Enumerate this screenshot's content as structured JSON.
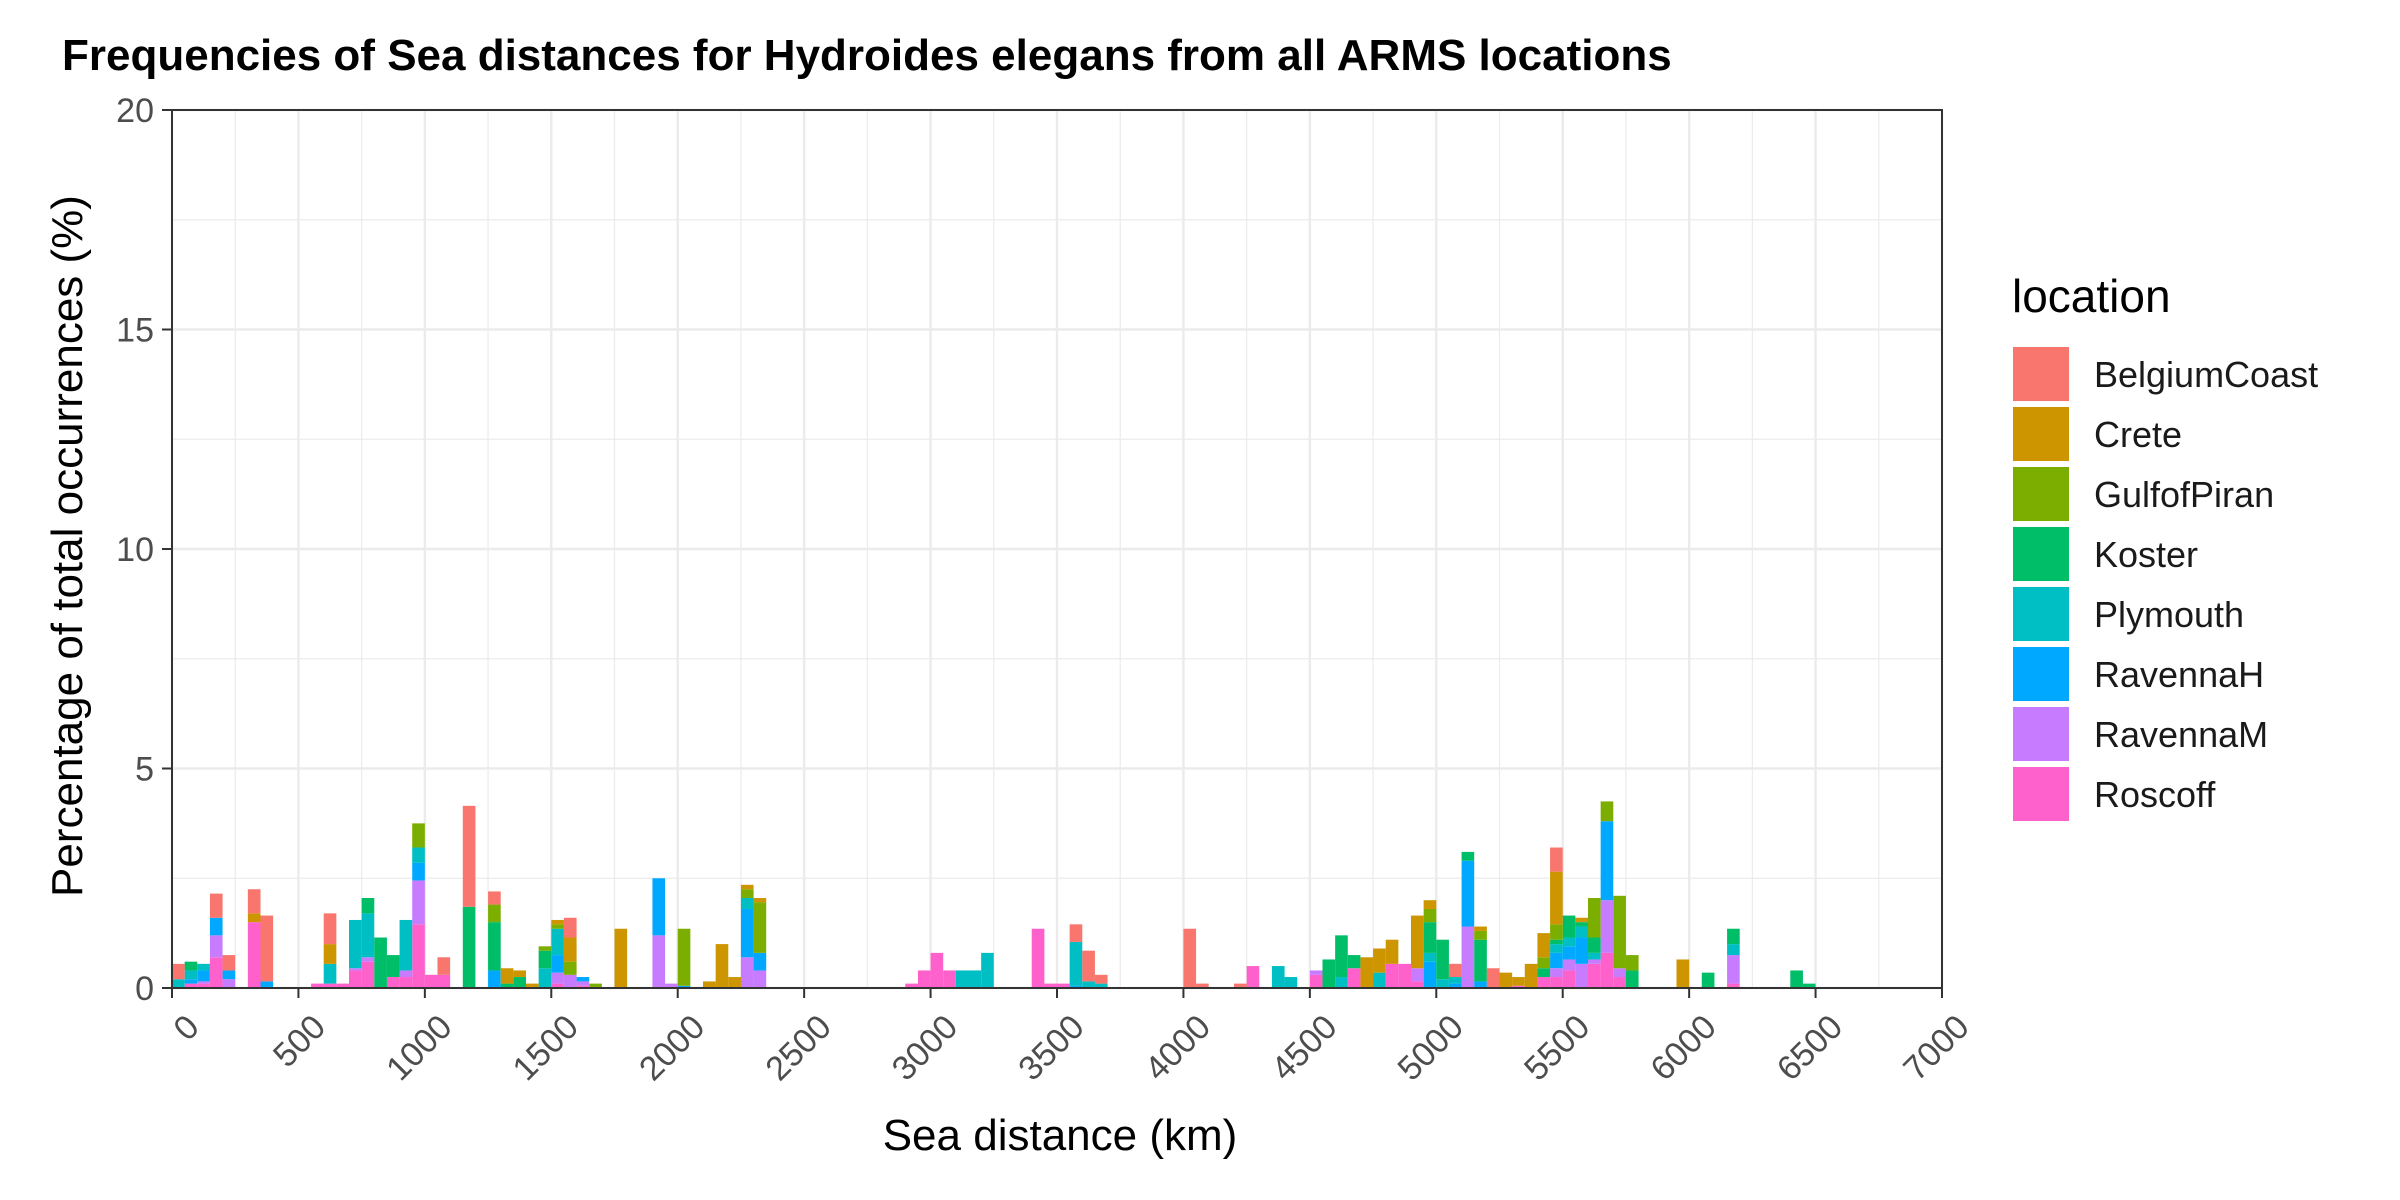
{
  "chart_data": {
    "type": "bar",
    "stacked": true,
    "title": "Frequencies of Sea distances for Hydroides elegans from all ARMS locations",
    "xlabel": "Sea distance (km)",
    "ylabel": "Percentage of total occurrences (%)",
    "xlim": [
      0,
      7000
    ],
    "ylim": [
      0,
      20
    ],
    "x_ticks": [
      0,
      500,
      1000,
      1500,
      2000,
      2500,
      3000,
      3500,
      4000,
      4500,
      5000,
      5500,
      6000,
      6500,
      7000
    ],
    "y_ticks": [
      0,
      5,
      10,
      15,
      20
    ],
    "bin_width": 50,
    "grid": true,
    "legend_title": "location",
    "legend_position": "right",
    "series": [
      {
        "name": "BelgiumCoast",
        "color": "#F8766D",
        "points": [
          [
            0,
            0.35
          ],
          [
            150,
            0.55
          ],
          [
            200,
            0.35
          ],
          [
            300,
            0.55
          ],
          [
            350,
            1.5
          ],
          [
            600,
            0.7
          ],
          [
            1050,
            0.4
          ],
          [
            1150,
            2.3
          ],
          [
            1250,
            0.3
          ],
          [
            1550,
            0.45
          ],
          [
            3550,
            0.4
          ],
          [
            3600,
            0.7
          ],
          [
            3650,
            0.2
          ],
          [
            4000,
            1.35
          ],
          [
            4050,
            0.1
          ],
          [
            4200,
            0.1
          ],
          [
            5050,
            0.3
          ],
          [
            5200,
            0.45
          ],
          [
            5450,
            0.55
          ]
        ]
      },
      {
        "name": "Crete",
        "color": "#CD9600",
        "points": [
          [
            300,
            0.2
          ],
          [
            600,
            0.45
          ],
          [
            1300,
            0.35
          ],
          [
            1350,
            0.15
          ],
          [
            1400,
            0.1
          ],
          [
            1500,
            0.1
          ],
          [
            1550,
            0.55
          ],
          [
            1750,
            1.35
          ],
          [
            2100,
            0.15
          ],
          [
            2150,
            1.0
          ],
          [
            2200,
            0.25
          ],
          [
            2250,
            0.1
          ],
          [
            2300,
            0.1
          ],
          [
            4700,
            0.7
          ],
          [
            4750,
            0.55
          ],
          [
            4800,
            0.55
          ],
          [
            4900,
            1.2
          ],
          [
            4950,
            0.2
          ],
          [
            5150,
            0.1
          ],
          [
            5250,
            0.35
          ],
          [
            5300,
            0.2
          ],
          [
            5350,
            0.55
          ],
          [
            5400,
            0.55
          ],
          [
            5450,
            1.2
          ],
          [
            5550,
            0.1
          ],
          [
            5950,
            0.65
          ]
        ]
      },
      {
        "name": "GulfofPiran",
        "color": "#7CAE00",
        "points": [
          [
            950,
            0.55
          ],
          [
            1250,
            0.4
          ],
          [
            1450,
            0.1
          ],
          [
            1500,
            0.1
          ],
          [
            1550,
            0.3
          ],
          [
            1650,
            0.1
          ],
          [
            2000,
            1.3
          ],
          [
            2250,
            0.2
          ],
          [
            2300,
            1.15
          ],
          [
            4950,
            0.3
          ],
          [
            5150,
            0.2
          ],
          [
            5400,
            0.25
          ],
          [
            5450,
            0.35
          ],
          [
            5600,
            0.9
          ],
          [
            5650,
            0.45
          ],
          [
            5700,
            1.65
          ],
          [
            5750,
            0.35
          ]
        ]
      },
      {
        "name": "Koster",
        "color": "#00BE67",
        "points": [
          [
            50,
            0.2
          ],
          [
            750,
            0.35
          ],
          [
            800,
            1.15
          ],
          [
            850,
            0.5
          ],
          [
            1150,
            1.85
          ],
          [
            1250,
            1.1
          ],
          [
            1300,
            0.1
          ],
          [
            1350,
            0.25
          ],
          [
            1450,
            0.4
          ],
          [
            4550,
            0.65
          ],
          [
            4600,
            0.95
          ],
          [
            4650,
            0.3
          ],
          [
            4950,
            0.7
          ],
          [
            5000,
            0.9
          ],
          [
            5100,
            0.2
          ],
          [
            5150,
            0.95
          ],
          [
            5400,
            0.2
          ],
          [
            5450,
            0.1
          ],
          [
            5500,
            0.5
          ],
          [
            5550,
            0.1
          ],
          [
            5600,
            0.35
          ],
          [
            5750,
            0.4
          ],
          [
            6050,
            0.35
          ],
          [
            6150,
            0.35
          ],
          [
            6400,
            0.4
          ],
          [
            6450,
            0.1
          ]
        ]
      },
      {
        "name": "Plymouth",
        "color": "#00BFC4",
        "points": [
          [
            0,
            0.2
          ],
          [
            50,
            0.2
          ],
          [
            100,
            0.15
          ],
          [
            600,
            0.45
          ],
          [
            700,
            1.1
          ],
          [
            750,
            1.0
          ],
          [
            900,
            1.15
          ],
          [
            950,
            0.35
          ],
          [
            1450,
            0.45
          ],
          [
            1500,
            0.6
          ],
          [
            2250,
            0.25
          ],
          [
            3100,
            0.4
          ],
          [
            3150,
            0.4
          ],
          [
            3200,
            0.8
          ],
          [
            3550,
            1.0
          ],
          [
            3600,
            0.15
          ],
          [
            3650,
            0.1
          ],
          [
            4350,
            0.5
          ],
          [
            4400,
            0.25
          ],
          [
            4600,
            0.25
          ],
          [
            4750,
            0.35
          ],
          [
            4950,
            0.2
          ],
          [
            5000,
            0.2
          ],
          [
            5050,
            0.15
          ],
          [
            5450,
            0.2
          ],
          [
            5500,
            0.2
          ],
          [
            5550,
            0.25
          ],
          [
            5600,
            0.15
          ],
          [
            6150,
            0.25
          ]
        ]
      },
      {
        "name": "RavennaH",
        "color": "#00A9FF",
        "points": [
          [
            50,
            0.1
          ],
          [
            100,
            0.25
          ],
          [
            150,
            0.4
          ],
          [
            200,
            0.2
          ],
          [
            350,
            0.15
          ],
          [
            950,
            0.4
          ],
          [
            1250,
            0.4
          ],
          [
            1500,
            0.4
          ],
          [
            1600,
            0.1
          ],
          [
            1900,
            1.3
          ],
          [
            2000,
            0.05
          ],
          [
            2250,
            1.1
          ],
          [
            2300,
            0.4
          ],
          [
            3550,
            0.05
          ],
          [
            4950,
            0.6
          ],
          [
            5050,
            0.1
          ],
          [
            5100,
            1.5
          ],
          [
            5150,
            0.15
          ],
          [
            5450,
            0.35
          ],
          [
            5500,
            0.3
          ],
          [
            5550,
            0.6
          ],
          [
            5650,
            1.8
          ]
        ]
      },
      {
        "name": "RavennaM",
        "color": "#C77CFF",
        "points": [
          [
            100,
            0.05
          ],
          [
            150,
            0.5
          ],
          [
            200,
            0.2
          ],
          [
            700,
            0.05
          ],
          [
            750,
            0.1
          ],
          [
            900,
            0.15
          ],
          [
            950,
            1.0
          ],
          [
            1500,
            0.25
          ],
          [
            1550,
            0.3
          ],
          [
            1600,
            0.1
          ],
          [
            1900,
            1.2
          ],
          [
            1950,
            0.1
          ],
          [
            2250,
            0.7
          ],
          [
            2300,
            0.4
          ],
          [
            4500,
            0.1
          ],
          [
            4900,
            0.3
          ],
          [
            5100,
            1.4
          ],
          [
            5450,
            0.2
          ],
          [
            5500,
            0.25
          ],
          [
            5550,
            0.55
          ],
          [
            5600,
            0.1
          ],
          [
            5650,
            1.2
          ],
          [
            5700,
            0.2
          ],
          [
            6150,
            0.65
          ]
        ]
      },
      {
        "name": "Roscoff",
        "color": "#FF61CC",
        "points": [
          [
            50,
            0.1
          ],
          [
            100,
            0.1
          ],
          [
            150,
            0.7
          ],
          [
            300,
            1.5
          ],
          [
            550,
            0.1
          ],
          [
            600,
            0.1
          ],
          [
            650,
            0.1
          ],
          [
            700,
            0.4
          ],
          [
            750,
            0.6
          ],
          [
            850,
            0.25
          ],
          [
            900,
            0.25
          ],
          [
            950,
            1.45
          ],
          [
            1000,
            0.3
          ],
          [
            1050,
            0.3
          ],
          [
            1500,
            0.1
          ],
          [
            1600,
            0.05
          ],
          [
            2900,
            0.1
          ],
          [
            2950,
            0.4
          ],
          [
            3000,
            0.8
          ],
          [
            3050,
            0.4
          ],
          [
            3400,
            1.35
          ],
          [
            3450,
            0.1
          ],
          [
            3500,
            0.1
          ],
          [
            4250,
            0.5
          ],
          [
            4500,
            0.3
          ],
          [
            4650,
            0.45
          ],
          [
            4800,
            0.55
          ],
          [
            4850,
            0.55
          ],
          [
            4900,
            0.15
          ],
          [
            5300,
            0.05
          ],
          [
            5400,
            0.25
          ],
          [
            5450,
            0.25
          ],
          [
            5500,
            0.4
          ],
          [
            5600,
            0.55
          ],
          [
            5650,
            0.8
          ],
          [
            5700,
            0.25
          ],
          [
            6150,
            0.1
          ]
        ]
      }
    ]
  }
}
